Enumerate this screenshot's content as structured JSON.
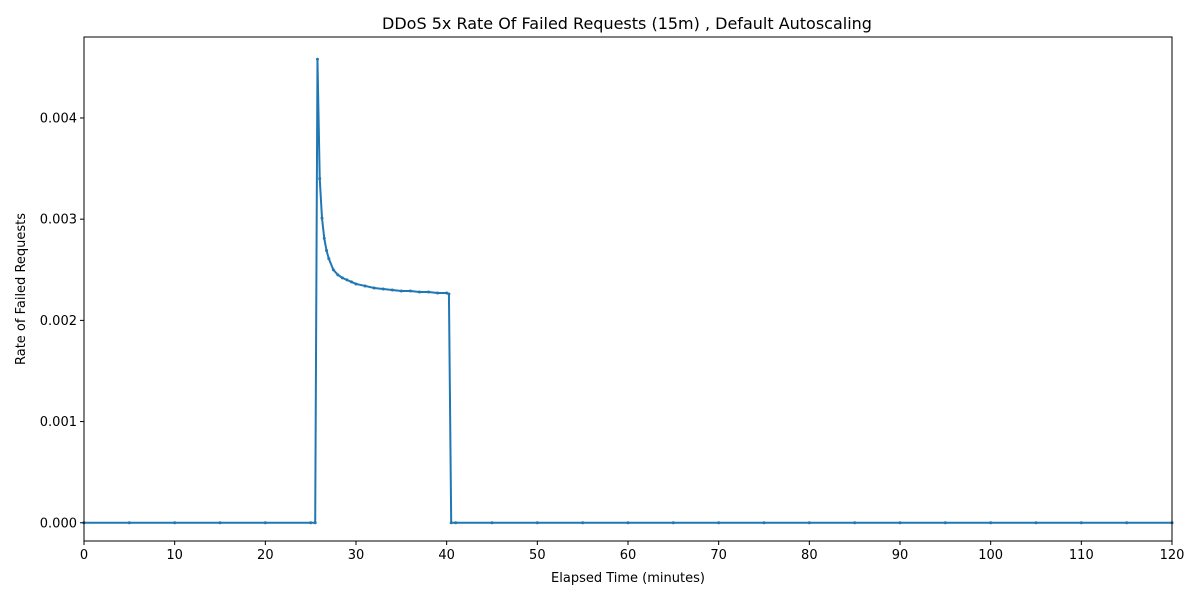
{
  "chart_data": {
    "type": "line",
    "title": "DDoS 5x Rate Of Failed Requests (15m) , Default Autoscaling",
    "xlabel": "Elapsed Time (minutes)",
    "ylabel": "Rate of Failed Requests",
    "xlim": [
      0,
      120
    ],
    "ylim": [
      -0.00018,
      0.0048
    ],
    "x_ticks": [
      0,
      10,
      20,
      30,
      40,
      50,
      60,
      70,
      80,
      90,
      100,
      110,
      120
    ],
    "x_tick_labels": [
      "0",
      "10",
      "20",
      "30",
      "40",
      "50",
      "60",
      "70",
      "80",
      "90",
      "100",
      "110",
      "120"
    ],
    "y_ticks": [
      0.0,
      0.001,
      0.002,
      0.003,
      0.004
    ],
    "y_tick_labels": [
      "0.000",
      "0.001",
      "0.002",
      "0.003",
      "0.004"
    ],
    "grid": false,
    "line_color": "#1f77b4",
    "series": [
      {
        "x": [
          0,
          5,
          10,
          15,
          20,
          25,
          25.5,
          25.75,
          26.0,
          26.25,
          26.5,
          26.75,
          27.0,
          27.5,
          28.0,
          28.5,
          29.0,
          29.5,
          30.0,
          31.0,
          32.0,
          33.0,
          34.0,
          35.0,
          36.0,
          37.0,
          38.0,
          39.0,
          40.0,
          40.25,
          40.5,
          41,
          45,
          50,
          55,
          60,
          65,
          70,
          75,
          80,
          85,
          90,
          95,
          100,
          105,
          110,
          115,
          120
        ],
        "y": [
          0,
          0,
          0,
          0,
          0,
          0,
          0,
          0.00458,
          0.0034,
          0.00301,
          0.00281,
          0.00269,
          0.00261,
          0.0025,
          0.00245,
          0.00242,
          0.0024,
          0.00238,
          0.00236,
          0.00234,
          0.00232,
          0.00231,
          0.0023,
          0.00229,
          0.00229,
          0.00228,
          0.00228,
          0.00227,
          0.00227,
          0.00226,
          0,
          0,
          0,
          0,
          0,
          0,
          0,
          0,
          0,
          0,
          0,
          0,
          0,
          0,
          0,
          0,
          0,
          0
        ]
      }
    ]
  }
}
